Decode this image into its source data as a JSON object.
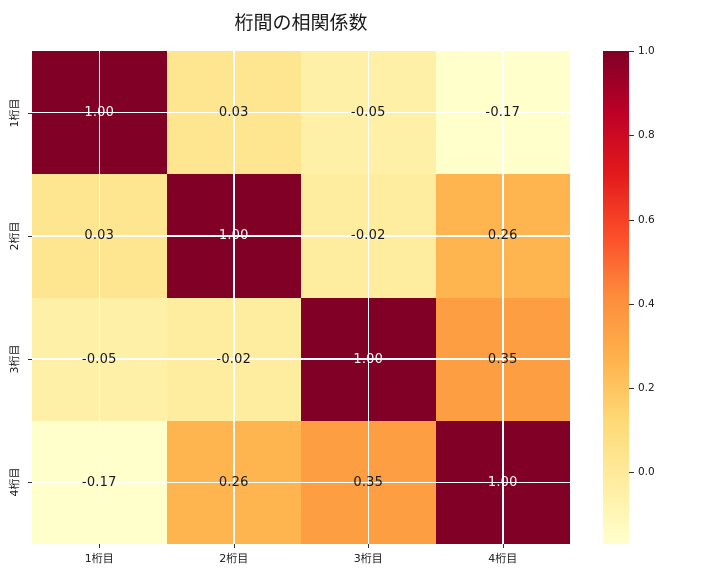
{
  "chart_data": {
    "type": "heatmap",
    "title": "桁間の相関係数",
    "categories": [
      "1桁目",
      "2桁目",
      "3桁目",
      "4桁目"
    ],
    "matrix": [
      [
        1.0,
        0.03,
        -0.05,
        -0.17
      ],
      [
        0.03,
        1.0,
        -0.02,
        0.26
      ],
      [
        -0.05,
        -0.02,
        1.0,
        0.35
      ],
      [
        -0.17,
        0.26,
        0.35,
        1.0
      ]
    ],
    "cell_labels": [
      [
        "1.00",
        "0.03",
        "-0.05",
        "-0.17"
      ],
      [
        "0.03",
        "1.00",
        "-0.02",
        "0.26"
      ],
      [
        "-0.05",
        "-0.02",
        "1.00",
        "0.35"
      ],
      [
        "-0.17",
        "0.26",
        "0.35",
        "1.00"
      ]
    ],
    "cell_colors": [
      [
        "#800026",
        "#fee691",
        "#fff0a8",
        "#ffffcc"
      ],
      [
        "#fee691",
        "#800026",
        "#ffed9f",
        "#feb44f"
      ],
      [
        "#fff0a8",
        "#ffed9f",
        "#800026",
        "#fd9e43"
      ],
      [
        "#ffffcc",
        "#feb44f",
        "#fd9e43",
        "#800026"
      ]
    ],
    "annotation_colors": {
      "on_dark": "#ffffff",
      "on_light": "#1a1a1a"
    },
    "grid": true,
    "gridline_color": "#ffffff",
    "colormap": "YlOrRd",
    "colormap_stops": [
      "#ffffcc",
      "#ffeda0",
      "#fed976",
      "#feb24c",
      "#fd8d3c",
      "#fc4e2a",
      "#e31a1c",
      "#bd0026",
      "#800026"
    ],
    "vmin": -0.17,
    "vmax": 1.0,
    "colorbar_ticks": [
      {
        "value": 1.0,
        "label": "1.0"
      },
      {
        "value": 0.8,
        "label": "0.8"
      },
      {
        "value": 0.6,
        "label": "0.6"
      },
      {
        "value": 0.4,
        "label": "0.4"
      },
      {
        "value": 0.2,
        "label": "0.2"
      },
      {
        "value": 0.0,
        "label": "0.0"
      }
    ],
    "legend_position": "right-colorbar",
    "xlabel": "",
    "ylabel": ""
  }
}
